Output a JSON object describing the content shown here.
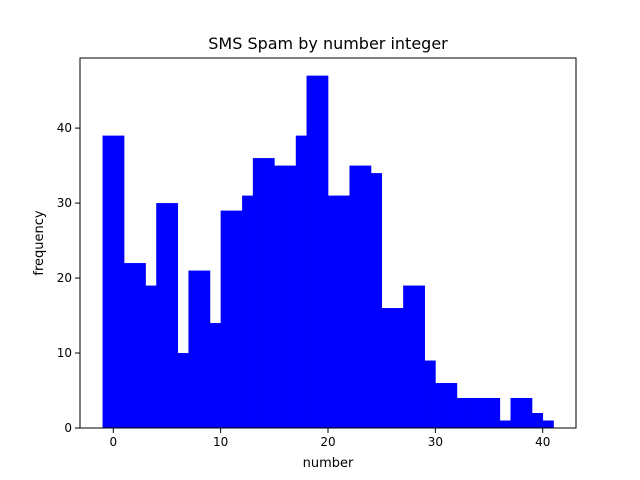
{
  "chart_data": {
    "type": "bar",
    "title": "SMS Spam by number integer",
    "xlabel": "number",
    "ylabel": "frequency",
    "xlim": [
      -3.1,
      43.1
    ],
    "ylim": [
      0,
      49.35
    ],
    "xticks": [
      0,
      10,
      20,
      30,
      40
    ],
    "yticks": [
      0,
      10,
      20,
      30,
      40
    ],
    "bar_color": "#0000ff",
    "grid": false,
    "series": [
      {
        "values": [
          39,
          39,
          22,
          22,
          19,
          30,
          30,
          10,
          21,
          21,
          14,
          29,
          29,
          31,
          36,
          36,
          35,
          35,
          39,
          47,
          47,
          31,
          31,
          35,
          35,
          34,
          16,
          16,
          19,
          19,
          9,
          6,
          6,
          4,
          4,
          4,
          4,
          1,
          4,
          4,
          2,
          1
        ]
      }
    ],
    "x": [
      -1.0,
      0.0,
      1.0,
      2.0,
      3.0,
      4.0,
      5.0,
      6.0,
      7.0,
      8.0,
      9.0,
      10.0,
      11.0,
      12.0,
      13.0,
      14.0,
      15.0,
      16.0,
      17.0,
      18.0,
      19.0,
      20.0,
      21.0,
      22.0,
      23.0,
      24.0,
      25.0,
      26.0,
      27.0,
      28.0,
      29.0,
      30.0,
      31.0,
      32.0,
      33.0,
      34.0,
      35.0,
      36.0,
      37.0,
      38.0,
      39.0,
      40.0
    ]
  }
}
